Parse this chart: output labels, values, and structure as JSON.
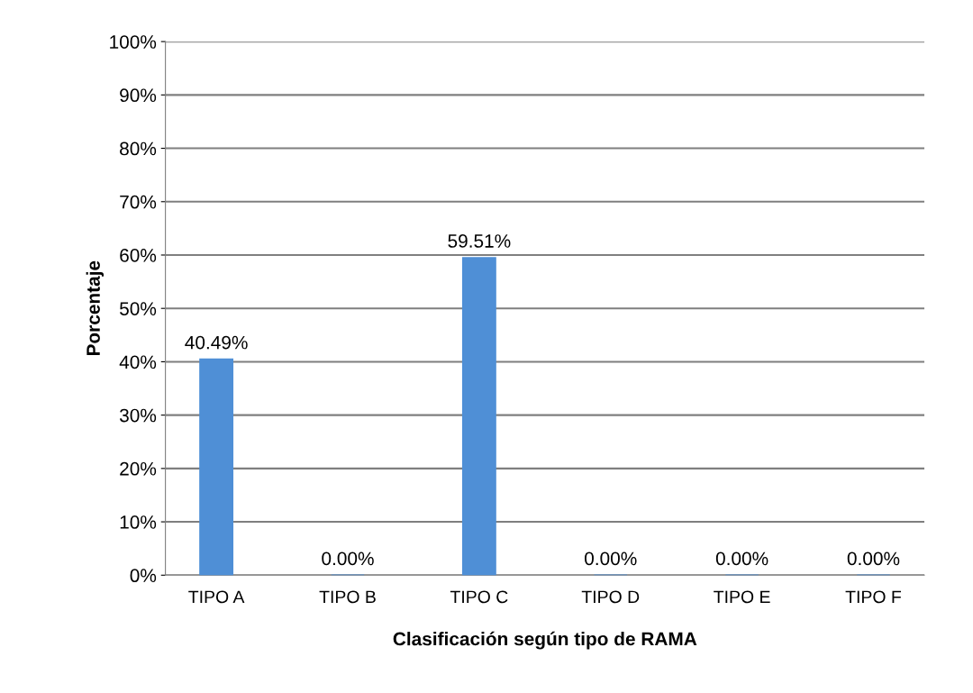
{
  "chart_data": {
    "type": "bar",
    "xlabel": "Clasificación según tipo de RAMA",
    "ylabel": "Porcentaje",
    "categories": [
      "TIPO A",
      "TIPO B",
      "TIPO C",
      "TIPO D",
      "TIPO E",
      "TIPO F"
    ],
    "values": [
      40.49,
      0.0,
      59.51,
      0.0,
      0.0,
      0.0
    ],
    "value_labels": [
      "40.49%",
      "0.00%",
      "59.51%",
      "0.00%",
      "0.00%",
      "0.00%"
    ],
    "color": "#4f8fd6",
    "ylim": [
      0,
      100
    ],
    "yticks": [
      {
        "value": 0,
        "label": "0%"
      },
      {
        "value": 10,
        "label": "10%"
      },
      {
        "value": 20,
        "label": "20%"
      },
      {
        "value": 30,
        "label": "30%"
      },
      {
        "value": 40,
        "label": "40%"
      },
      {
        "value": 50,
        "label": "50%"
      },
      {
        "value": 60,
        "label": "60%"
      },
      {
        "value": 70,
        "label": "70%"
      },
      {
        "value": 80,
        "label": "80%"
      },
      {
        "value": 90,
        "label": "90%"
      },
      {
        "value": 100,
        "label": "100%"
      }
    ],
    "grid": "y"
  }
}
